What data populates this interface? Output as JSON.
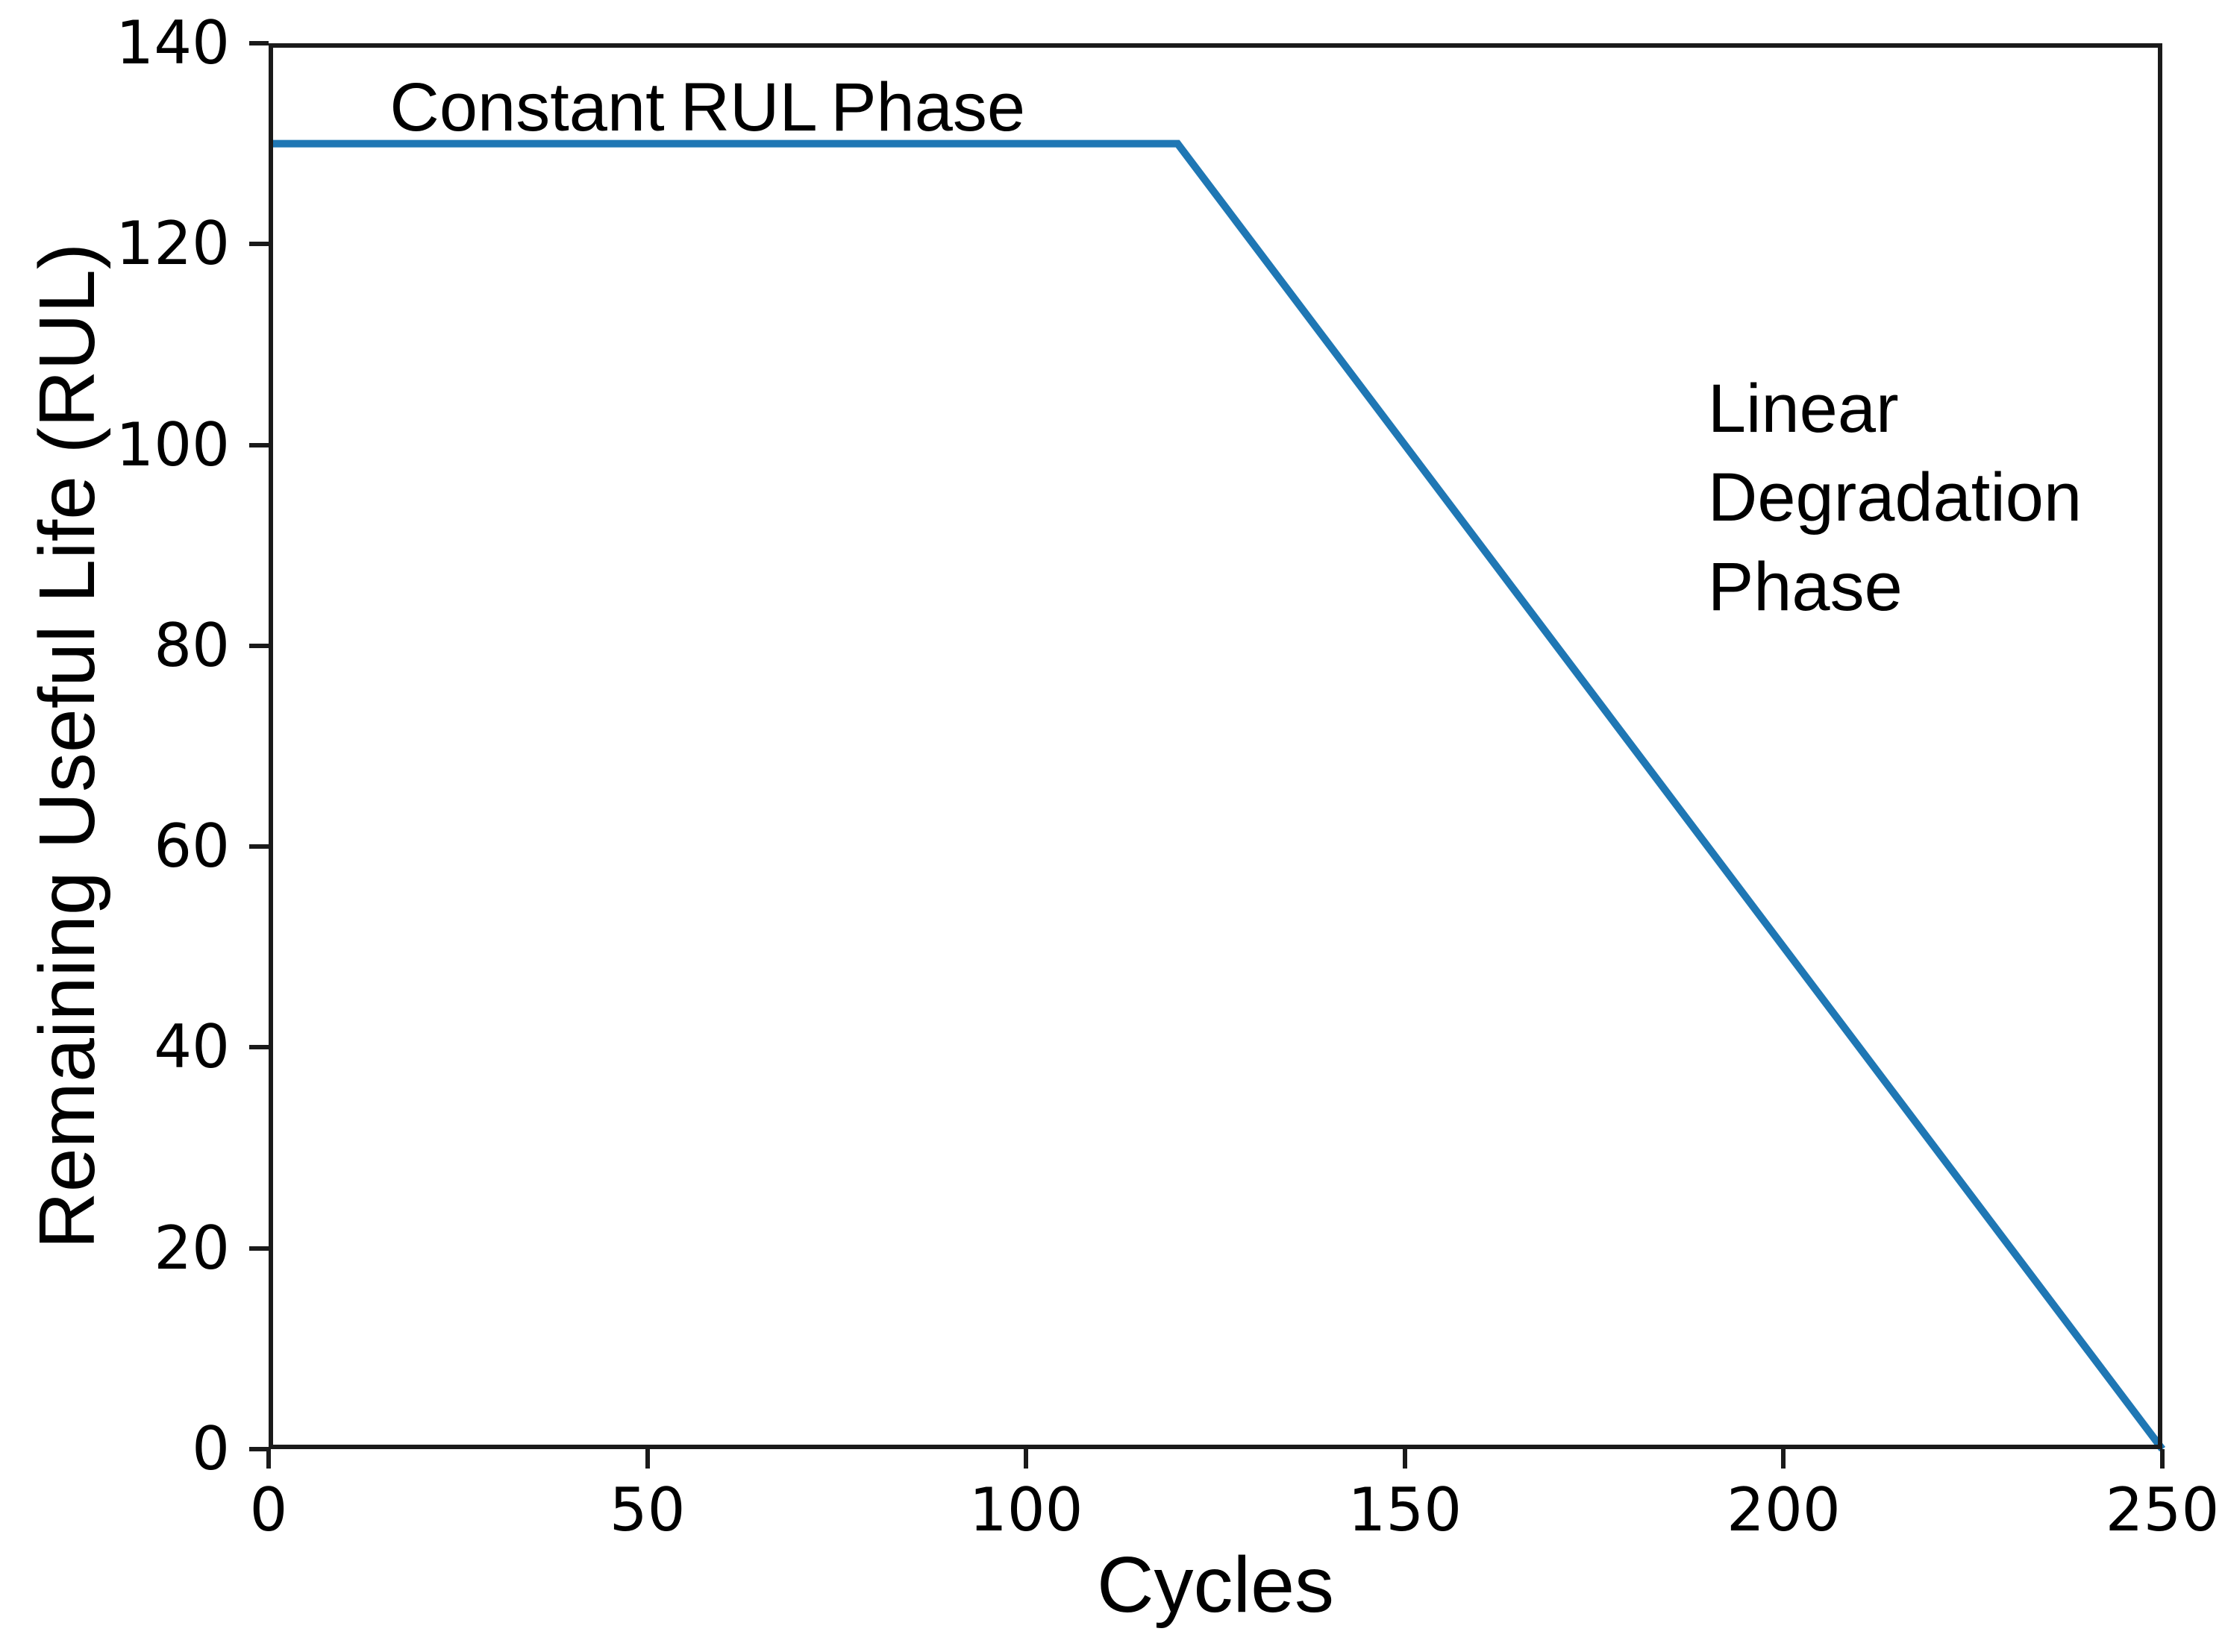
{
  "figure": {
    "background": "#ffffff"
  },
  "chart_data": {
    "type": "line",
    "title": "",
    "xlabel": "Cycles",
    "ylabel": "Remaining Useful Life (RUL)",
    "xlim": [
      0,
      250
    ],
    "ylim": [
      0,
      140
    ],
    "xticks": [
      0,
      50,
      100,
      150,
      200,
      250
    ],
    "yticks": [
      0,
      20,
      40,
      60,
      80,
      100,
      120,
      140
    ],
    "grid": false,
    "legend": "none",
    "axis_color": "#1a1a1a",
    "series": [
      {
        "name": "rul-trajectory",
        "color": "#1f77b4",
        "stroke_width": 10,
        "points": [
          [
            0,
            130
          ],
          [
            120,
            130
          ],
          [
            250,
            0
          ]
        ]
      }
    ],
    "annotations": [
      {
        "name": "constant-rul-phase",
        "text": "Constant RUL Phase",
        "x": 16,
        "y": 138
      },
      {
        "name": "linear-degradation-phase",
        "text": "Linear\nDegradation\nPhase",
        "x": 190,
        "y": 108
      }
    ]
  }
}
